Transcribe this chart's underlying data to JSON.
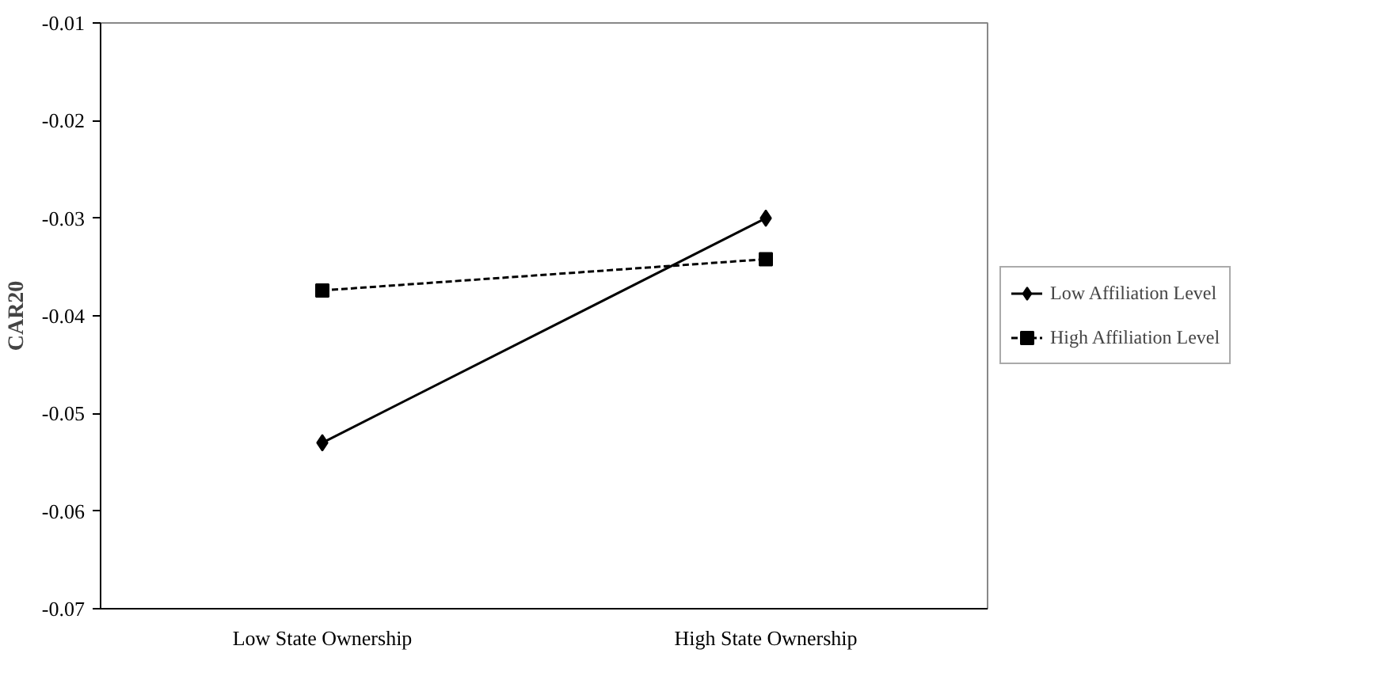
{
  "chart_data": {
    "type": "line",
    "ylabel": "CAR20",
    "categories": [
      "Low State Ownership",
      "High State Ownership"
    ],
    "series": [
      {
        "name": "Low Affiliation Level",
        "color": "#000000",
        "values": [
          -0.053,
          -0.03
        ],
        "marker": "diamond",
        "line_style": "solid"
      },
      {
        "name": "High Affiliation Level",
        "color": "#000000",
        "values": [
          -0.0374,
          -0.0342
        ],
        "marker": "square",
        "line_style": "dashed"
      }
    ],
    "ylim": [
      -0.07,
      -0.01
    ],
    "yticks": [
      -0.07,
      -0.06,
      -0.05,
      -0.04,
      -0.03,
      -0.02,
      -0.01
    ],
    "grid": false,
    "legend": "right"
  }
}
